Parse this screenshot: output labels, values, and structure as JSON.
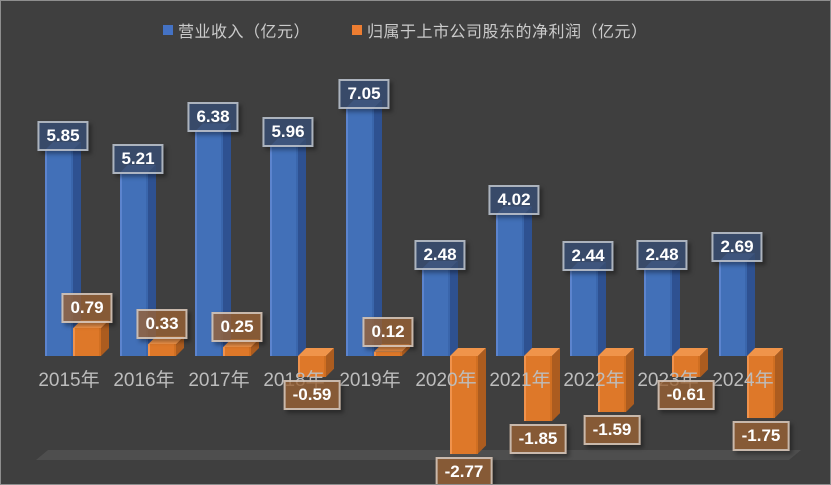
{
  "chart_data": {
    "type": "bar",
    "style": "3d-column",
    "title": "",
    "categories": [
      "2015年",
      "2016年",
      "2017年",
      "2018年",
      "2019年",
      "2020年",
      "2021年",
      "2022年",
      "2023年",
      "2024年"
    ],
    "series": [
      {
        "name": "营业收入（亿元）",
        "color": "#4472C4",
        "values": [
          5.85,
          5.21,
          6.38,
          5.96,
          7.05,
          2.48,
          4.02,
          2.44,
          2.48,
          2.69
        ]
      },
      {
        "name": "归属于上市公司股东的净利润（亿元）",
        "color": "#ED7D31",
        "values": [
          0.79,
          0.33,
          0.25,
          -0.59,
          0.12,
          -2.77,
          -1.85,
          -1.59,
          -0.61,
          -1.75
        ]
      }
    ],
    "xlabel": "",
    "ylabel": "",
    "ylim": [
      -3.2,
      7.6
    ],
    "grid": false,
    "legend_position": "top",
    "value_labels": true,
    "background": "#3F3F3F",
    "label_colors": {
      "revenue_box": "#38506F",
      "profit_box": "#7A5A3C",
      "text": "#FFFFFF",
      "axis_text": "#BDBDBD"
    }
  }
}
